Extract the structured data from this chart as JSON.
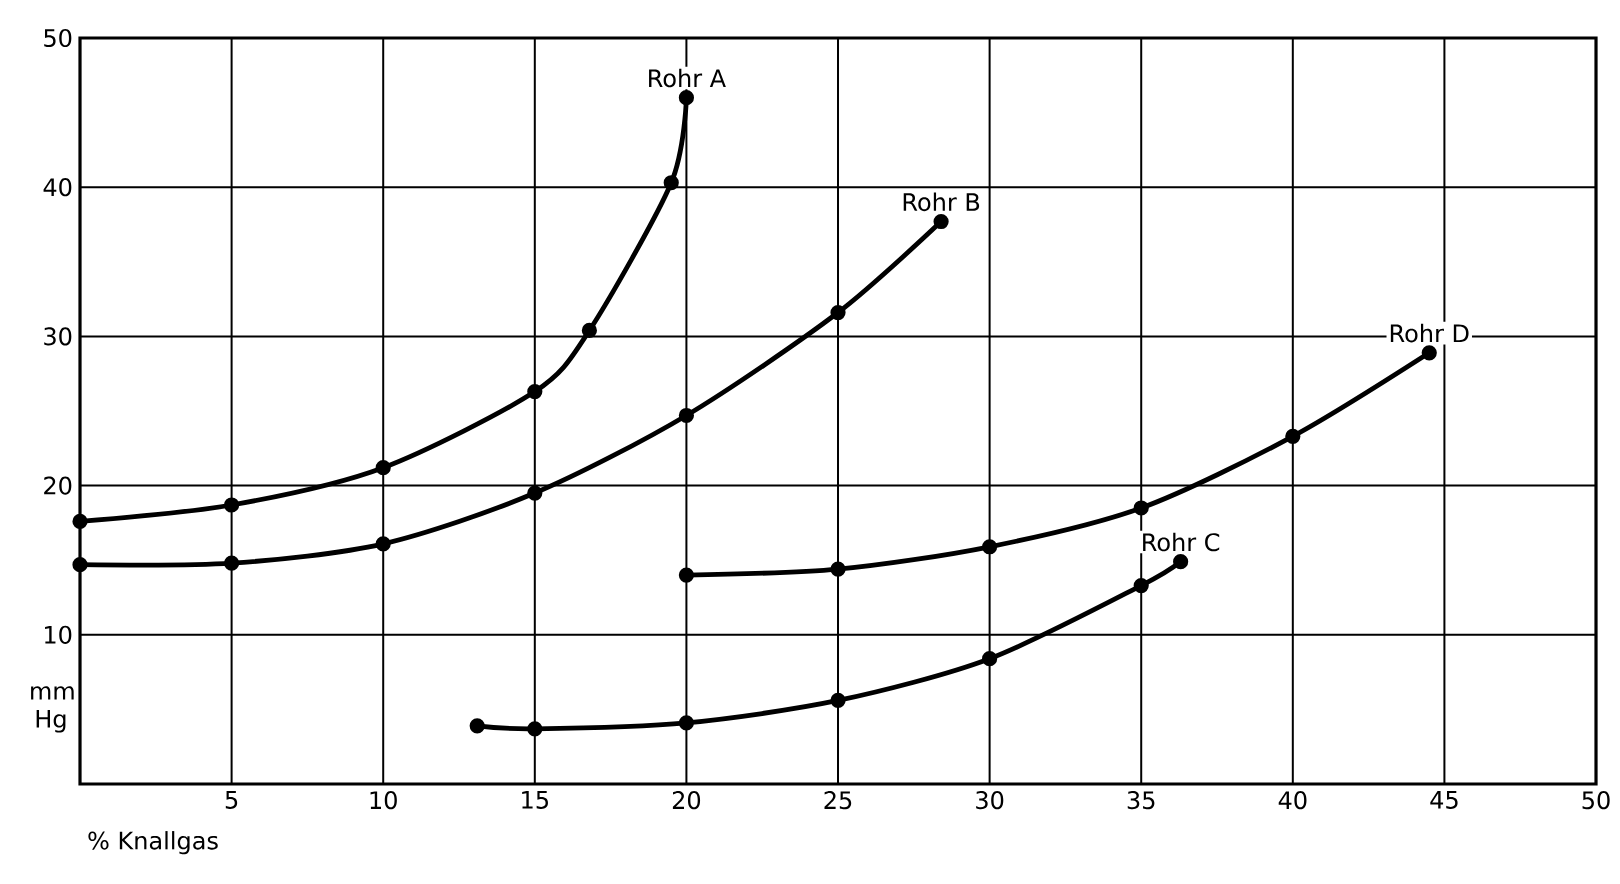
{
  "chart_data": {
    "type": "line",
    "xlabel": "% Knallgas",
    "ylabel": "mm Hg",
    "xlim": [
      0,
      50
    ],
    "ylim": [
      0,
      50
    ],
    "xticks": [
      5,
      10,
      15,
      20,
      25,
      30,
      35,
      40,
      45,
      50
    ],
    "yticks": [
      10,
      20,
      30,
      40,
      50
    ],
    "grid": true,
    "marker": "circle",
    "line_style": "solid",
    "series": [
      {
        "name": "Rohr A",
        "color": "#000000",
        "x": [
          0,
          5,
          10,
          15,
          16.8,
          19.5,
          20
        ],
        "values": [
          17.6,
          18.7,
          21.2,
          26.3,
          30.4,
          40.3,
          46
        ]
      },
      {
        "name": "Rohr B",
        "color": "#000000",
        "x": [
          0,
          5,
          10,
          15,
          20,
          25,
          28.4
        ],
        "values": [
          14.7,
          14.8,
          16.1,
          19.5,
          24.7,
          31.6,
          37.7
        ]
      },
      {
        "name": "Rohr D",
        "color": "#000000",
        "x": [
          20,
          25,
          30,
          35,
          40,
          44.5
        ],
        "values": [
          14.0,
          14.4,
          15.9,
          18.5,
          23.3,
          28.9
        ]
      },
      {
        "name": "Rohr C",
        "color": "#000000",
        "x": [
          13.1,
          15,
          20,
          25,
          30,
          35,
          36.3
        ],
        "values": [
          3.9,
          3.7,
          4.1,
          5.6,
          8.4,
          13.3,
          14.9
        ]
      }
    ]
  }
}
